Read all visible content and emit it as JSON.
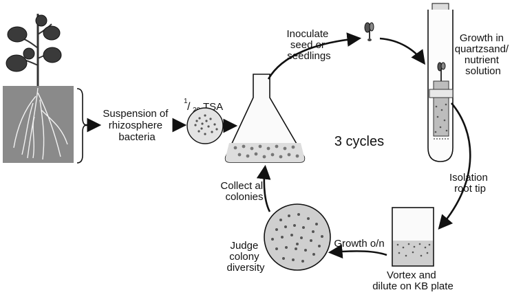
{
  "labels": {
    "suspension": [
      "Suspension of",
      "rhizosphere",
      "bacteria"
    ],
    "tsa": {
      "frac_top": "1",
      "frac_bottom": "20",
      "name": "TSA"
    },
    "inoculate": [
      "Inoculate",
      "seed or",
      "seedlings"
    ],
    "growth_in": [
      "Growth in",
      "quartzsand/",
      "nutrient",
      "solution"
    ],
    "cycles": "3 cycles",
    "isolation": [
      "Isolation",
      "root tip"
    ],
    "vortex": [
      "Vortex and",
      "dilute on KB plate"
    ],
    "growth_on": "Growth o/n",
    "judge": [
      "Judge",
      "colony",
      "diversity"
    ],
    "collect": [
      "Collect all",
      "colonies"
    ]
  },
  "colors": {
    "ink": "#111111",
    "soil": "#8a8a8a",
    "plate": "#cfcfcf",
    "leaf": "#3a3a3a"
  }
}
